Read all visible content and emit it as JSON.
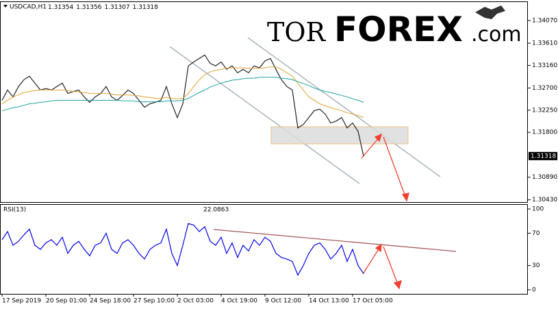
{
  "logo": {
    "parts": [
      "TOR",
      "FOREX",
      ".com"
    ]
  },
  "chart_data": [
    {
      "type": "line",
      "symbol": "USDCAD,H1",
      "ohlc": [
        1.31354,
        1.31356,
        1.31307,
        1.31318
      ],
      "last_price": 1.31318,
      "categories": [
        "17 Sep 2019",
        null,
        null,
        null,
        null,
        null,
        null,
        null,
        "20 Sep 01:00",
        null,
        null,
        null,
        null,
        null,
        null,
        null,
        "24 Sep 18:00",
        null,
        null,
        null,
        null,
        null,
        null,
        null,
        "27 Sep 10:00",
        null,
        null,
        null,
        null,
        null,
        null,
        null,
        "2 Oct 03:00",
        null,
        null,
        null,
        null,
        null,
        null,
        null,
        "4 Oct 19:00",
        null,
        null,
        null,
        null,
        null,
        null,
        null,
        "9 Oct 12:00",
        null,
        null,
        null,
        null,
        null,
        null,
        null,
        "14 Oct 13:00",
        null,
        null,
        null,
        null,
        null,
        null,
        null,
        "17 Oct 05:00",
        null,
        null
      ],
      "series": [
        {
          "color": "#222222",
          "values": [
            1.3245,
            1.3266,
            1.3252,
            1.3273,
            1.3287,
            1.3294,
            1.328,
            1.3266,
            1.3269,
            1.3266,
            1.3273,
            1.328,
            1.3259,
            1.3263,
            1.3266,
            1.3252,
            1.3241,
            1.3252,
            1.3259,
            1.3273,
            1.3252,
            1.3245,
            1.3255,
            1.3266,
            1.3259,
            1.3245,
            1.3231,
            1.3238,
            1.3241,
            1.3245,
            1.3273,
            1.3238,
            1.321,
            1.3238,
            1.3315,
            1.3323,
            1.333,
            1.3337,
            1.332,
            1.3315,
            1.3323,
            1.3308,
            1.3315,
            1.3301,
            1.3308,
            1.3301,
            1.3315,
            1.3311,
            1.3325,
            1.333,
            1.3308,
            1.3287,
            1.3273,
            1.3266,
            1.3189,
            1.3196,
            1.321,
            1.3224,
            1.3227,
            1.3217,
            1.3199,
            1.3203,
            1.321,
            1.3189,
            1.3199,
            1.3182,
            1.3132
          ]
        },
        {
          "color": "#e0a030",
          "values": [
            1.3238,
            1.3245,
            1.3252,
            1.3256,
            1.3261,
            1.3263,
            1.3265,
            1.3266,
            1.3266,
            1.3266,
            1.3266,
            1.3266,
            1.3265,
            1.3263,
            1.3262,
            1.3261,
            1.3259,
            1.3259,
            1.3259,
            1.3259,
            1.3258,
            1.3256,
            1.3256,
            1.3256,
            1.3255,
            1.3254,
            1.3252,
            1.3251,
            1.3249,
            1.3249,
            1.3251,
            1.3249,
            1.3248,
            1.3249,
            1.3259,
            1.3273,
            1.3287,
            1.3297,
            1.3303,
            1.3306,
            1.3308,
            1.331,
            1.3311,
            1.3311,
            1.3311,
            1.331,
            1.331,
            1.331,
            1.3311,
            1.3313,
            1.3313,
            1.3308,
            1.3301,
            1.3294,
            1.328,
            1.3266,
            1.3252,
            1.3245,
            1.3238,
            1.3234,
            1.323,
            1.3227,
            1.3224,
            1.322,
            1.3217,
            1.3214,
            1.321
          ]
        },
        {
          "color": "#20a0a0",
          "values": [
            1.3224,
            1.3227,
            1.323,
            1.3232,
            1.3235,
            1.3238,
            1.3239,
            1.3241,
            1.3242,
            1.3244,
            1.3245,
            1.3245,
            1.3245,
            1.3245,
            1.3245,
            1.3245,
            1.3245,
            1.3245,
            1.3245,
            1.3245,
            1.3245,
            1.3245,
            1.3244,
            1.3244,
            1.3244,
            1.3242,
            1.3242,
            1.3242,
            1.3242,
            1.3242,
            1.3244,
            1.3244,
            1.3244,
            1.3245,
            1.3249,
            1.3255,
            1.3261,
            1.3266,
            1.3272,
            1.3276,
            1.328,
            1.3283,
            1.3286,
            1.3287,
            1.3289,
            1.329,
            1.329,
            1.3292,
            1.3292,
            1.3292,
            1.3292,
            1.329,
            1.3289,
            1.3287,
            1.3283,
            1.3279,
            1.3275,
            1.327,
            1.3266,
            1.3263,
            1.3261,
            1.3258,
            1.3255,
            1.3252,
            1.3248,
            1.3245,
            1.3241
          ]
        }
      ],
      "ylim": [
        1.3037,
        1.3446
      ],
      "yticks": [
        {
          "value": 1.3407,
          "label": "1.34070"
        },
        {
          "value": 1.3361,
          "label": "1.33610"
        },
        {
          "value": 1.3316,
          "label": "1.33160"
        },
        {
          "value": 1.327,
          "label": "1.32700"
        },
        {
          "value": 1.3225,
          "label": "1.32250"
        },
        {
          "value": 1.318,
          "label": "1.31800"
        },
        {
          "value": 1.3089,
          "label": "1.30890"
        },
        {
          "value": 1.3043,
          "label": "1.30430"
        }
      ]
    },
    {
      "type": "line",
      "indicator": "RSI(13)",
      "last_value": 22.0863,
      "series": [
        {
          "color": "#0000ee",
          "values": [
            62,
            72,
            55,
            60,
            68,
            75,
            55,
            50,
            58,
            62,
            55,
            65,
            45,
            55,
            60,
            50,
            42,
            55,
            58,
            70,
            50,
            45,
            58,
            62,
            55,
            45,
            38,
            50,
            55,
            58,
            75,
            45,
            30,
            55,
            82,
            80,
            72,
            78,
            60,
            55,
            65,
            45,
            58,
            40,
            55,
            48,
            62,
            55,
            65,
            60,
            45,
            40,
            38,
            35,
            18,
            30,
            45,
            55,
            58,
            50,
            38,
            45,
            55,
            35,
            50,
            30,
            20
          ]
        }
      ],
      "ylim": [
        -6,
        106
      ],
      "yticks": [
        100,
        70,
        30,
        0
      ]
    }
  ]
}
